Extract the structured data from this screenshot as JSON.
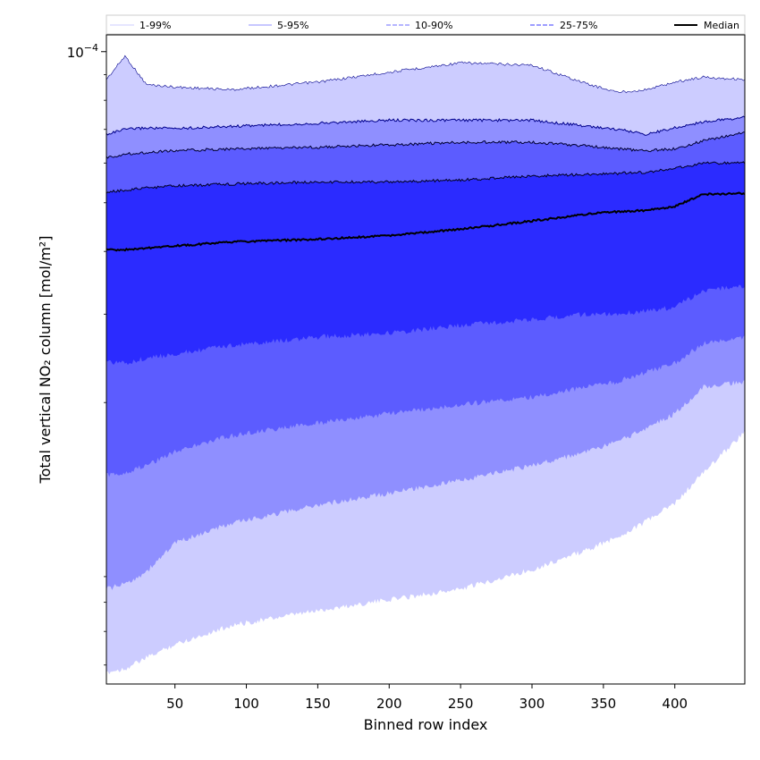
{
  "chart_data": {
    "type": "area",
    "title": "",
    "xlabel": "Binned row index",
    "ylabel": "Total vertical NO₂ column [mol/m²]",
    "yscale": "log",
    "xlim": [
      2,
      449
    ],
    "ylim": [
      5.5e-06,
      0.000108
    ],
    "x_ticks": [
      50,
      100,
      150,
      200,
      250,
      300,
      350,
      400
    ],
    "y_major_tick": {
      "value": 0.0001,
      "label_base": "10",
      "label_exp": "−4"
    },
    "y_minor_ticks": [
      9e-06,
      8e-06,
      7e-06,
      6e-06,
      2e-05,
      3e-05,
      4e-05,
      5e-05,
      6e-05,
      7e-05,
      8e-05,
      9e-05
    ],
    "legend_position": "top",
    "legend": [
      {
        "label": "1-99%",
        "color": "#ccccff",
        "dash": "solid"
      },
      {
        "label": "5-95%",
        "color": "#8f8fff",
        "dash": "solid"
      },
      {
        "label": "10-90%",
        "color": "#6b6bff",
        "dash": "dashed"
      },
      {
        "label": "25-75%",
        "color": "#3b3bff",
        "dash": "dashed"
      },
      {
        "label": "Median",
        "color": "#000000",
        "dash": "solid"
      }
    ],
    "x": [
      2,
      15,
      30,
      50,
      90,
      150,
      200,
      250,
      300,
      340,
      360,
      380,
      400,
      420,
      449
    ],
    "bands": [
      {
        "name": "1-99%",
        "fill": "#ccccff",
        "upper": [
          8.8e-05,
          9.8e-05,
          8.6e-05,
          8.5e-05,
          8.4e-05,
          8.7e-05,
          9.1e-05,
          9.5e-05,
          9.4e-05,
          8.6e-05,
          8.3e-05,
          8.4e-05,
          8.7e-05,
          8.9e-05,
          8.8e-05
        ],
        "lower": [
          5.8e-06,
          5.9e-06,
          6.2e-06,
          6.6e-06,
          7.2e-06,
          7.7e-06,
          8.1e-06,
          8.5e-06,
          9.3e-06,
          1.02e-05,
          1.08e-05,
          1.16e-05,
          1.26e-05,
          1.45e-05,
          1.75e-05
        ]
      },
      {
        "name": "5-95%",
        "fill": "#8f8fff",
        "upper": [
          6.85e-05,
          7e-05,
          7.05e-05,
          7.03e-05,
          7.1e-05,
          7.2e-05,
          7.3e-05,
          7.3e-05,
          7.3e-05,
          7.1e-05,
          7e-05,
          6.85e-05,
          7.05e-05,
          7.25e-05,
          7.4e-05
        ],
        "lower": [
          8.5e-06,
          8.7e-06,
          9.2e-06,
          1.05e-05,
          1.15e-05,
          1.25e-05,
          1.32e-05,
          1.4e-05,
          1.5e-05,
          1.6e-05,
          1.67e-05,
          1.78e-05,
          1.9e-05,
          2.15e-05,
          2.2e-05
        ]
      },
      {
        "name": "10-90%",
        "fill": "#5c5cff",
        "upper": [
          6.15e-05,
          6.25e-05,
          6.3e-05,
          6.35e-05,
          6.4e-05,
          6.45e-05,
          6.52e-05,
          6.6e-05,
          6.6e-05,
          6.48e-05,
          6.4e-05,
          6.35e-05,
          6.4e-05,
          6.65e-05,
          6.9e-05
        ],
        "lower": [
          1.43e-05,
          1.45e-05,
          1.5e-05,
          1.6e-05,
          1.72e-05,
          1.82e-05,
          1.9e-05,
          1.98e-05,
          2.05e-05,
          2.15e-05,
          2.2e-05,
          2.3e-05,
          2.4e-05,
          2.62e-05,
          2.7e-05
        ]
      },
      {
        "name": "25-75%",
        "fill": "#2b2bff",
        "upper": [
          5.25e-05,
          5.3e-05,
          5.35e-05,
          5.4e-05,
          5.45e-05,
          5.5e-05,
          5.5e-05,
          5.55e-05,
          5.65e-05,
          5.7e-05,
          5.72e-05,
          5.75e-05,
          5.85e-05,
          6e-05,
          6e-05
        ],
        "lower": [
          2.4e-05,
          2.4e-05,
          2.45e-05,
          2.5e-05,
          2.6e-05,
          2.7e-05,
          2.75e-05,
          2.85e-05,
          2.93e-05,
          3e-05,
          3e-05,
          3.05e-05,
          3.1e-05,
          3.35e-05,
          3.4e-05
        ]
      }
    ],
    "median": [
      4.03e-05,
      4.03e-05,
      4.06e-05,
      4.1e-05,
      4.18e-05,
      4.23e-05,
      4.3e-05,
      4.43e-05,
      4.6e-05,
      4.75e-05,
      4.8e-05,
      4.83e-05,
      4.92e-05,
      5.2e-05,
      5.22e-05
    ]
  }
}
